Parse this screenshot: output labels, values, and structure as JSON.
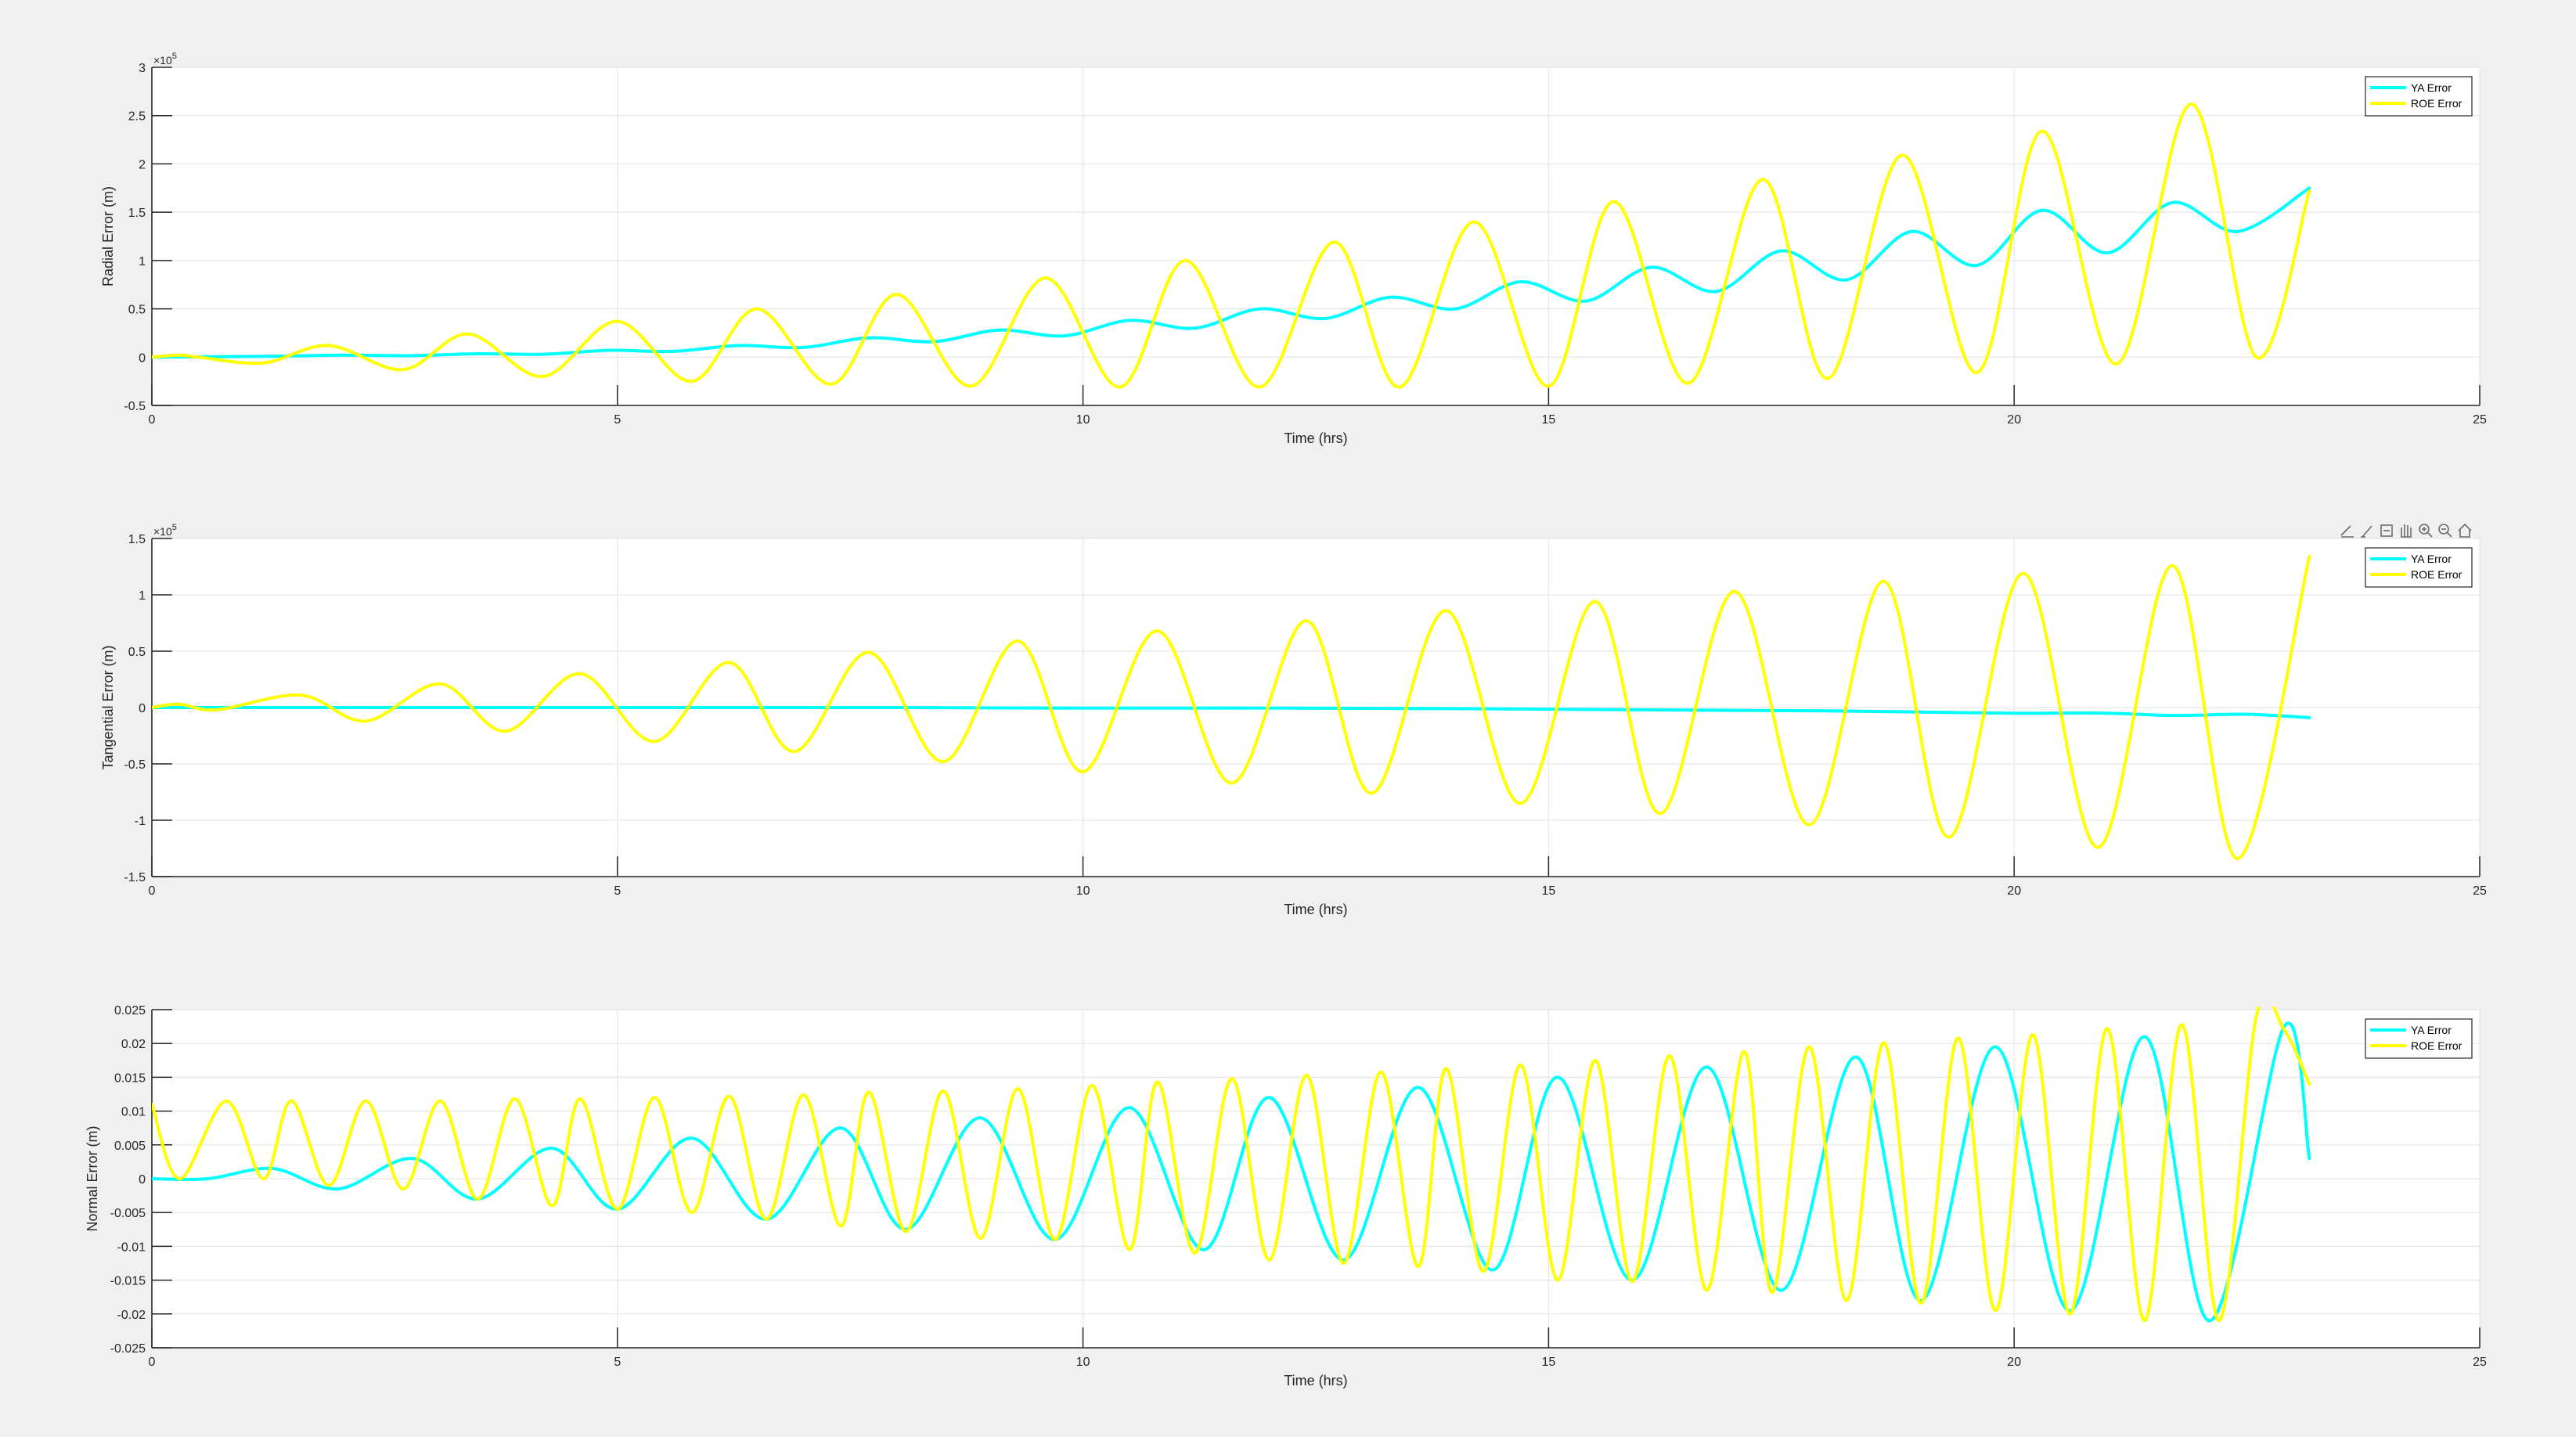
{
  "figure": {
    "background": "#f0f0f0"
  },
  "colors": {
    "ya": "#00ffff",
    "roe": "#ffff00",
    "axes_bg": "#ffffff",
    "grid": "#e6e6e6",
    "axis": "#262626"
  },
  "toolbar": {
    "icons": [
      "export-icon",
      "brush-icon",
      "datatip-icon",
      "pan-icon",
      "zoom-in-icon",
      "zoom-out-icon",
      "home-icon"
    ]
  },
  "chart_data": [
    {
      "type": "line",
      "xlabel": "Time (hrs)",
      "ylabel": "Radial Error (m)",
      "xlim": [
        0,
        25
      ],
      "ylim": [
        -0.5,
        3
      ],
      "exponent_prefix": "×10",
      "exponent_power": "5",
      "xticks": [
        "0",
        "5",
        "10",
        "15",
        "20",
        "25"
      ],
      "yticks": [
        "-0.5",
        "0",
        "0.5",
        "1",
        "1.5",
        "2",
        "2.5",
        "3"
      ],
      "ytick_values": [
        -0.5,
        0,
        0.5,
        1,
        1.5,
        2,
        2.5,
        3
      ],
      "grid": true,
      "legend_position": "top-right",
      "series": [
        {
          "name": "YA Error",
          "color": "#00ffff",
          "x": [
            0,
            1.35,
            2.05,
            2.8,
            3.5,
            4.2,
            4.9,
            5.6,
            6.3,
            7.0,
            7.7,
            8.4,
            9.1,
            9.8,
            10.5,
            11.2,
            11.9,
            12.6,
            13.3,
            14.0,
            14.7,
            15.4,
            16.1,
            16.8,
            17.5,
            18.2,
            18.9,
            19.6,
            20.3,
            21.0,
            21.7,
            22.4,
            23.17
          ],
          "y": [
            0,
            0.01,
            0.02,
            0.015,
            0.035,
            0.03,
            0.07,
            0.06,
            0.12,
            0.1,
            0.2,
            0.16,
            0.28,
            0.22,
            0.38,
            0.3,
            0.5,
            0.4,
            0.62,
            0.5,
            0.78,
            0.58,
            0.93,
            0.68,
            1.1,
            0.8,
            1.3,
            0.95,
            1.52,
            1.08,
            1.6,
            1.3,
            1.75
          ]
        },
        {
          "name": "ROE Error",
          "color": "#ffff00",
          "x": [
            0,
            0.3,
            0.5,
            1.2,
            1.9,
            2.7,
            3.4,
            4.2,
            5.0,
            5.8,
            6.5,
            7.3,
            8.0,
            8.8,
            9.6,
            10.4,
            11.1,
            11.9,
            12.7,
            13.4,
            14.2,
            15.0,
            15.7,
            16.5,
            17.3,
            18.0,
            18.8,
            19.6,
            20.3,
            21.1,
            21.9,
            22.6,
            23.17
          ],
          "y": [
            0,
            0.02,
            0,
            -0.06,
            0.12,
            -0.13,
            0.24,
            -0.2,
            0.37,
            -0.25,
            0.5,
            -0.28,
            0.65,
            -0.3,
            0.82,
            -0.31,
            1.0,
            -0.31,
            1.19,
            -0.31,
            1.4,
            -0.3,
            1.61,
            -0.27,
            1.84,
            -0.22,
            2.09,
            -0.16,
            2.34,
            -0.07,
            2.62,
            0.0,
            1.72
          ]
        }
      ]
    },
    {
      "type": "line",
      "xlabel": "Time (hrs)",
      "ylabel": "Tangential Error (m)",
      "xlim": [
        0,
        25
      ],
      "ylim": [
        -1.5,
        1.5
      ],
      "exponent_prefix": "×10",
      "exponent_power": "5",
      "xticks": [
        "0",
        "5",
        "10",
        "15",
        "20",
        "25"
      ],
      "yticks": [
        "-1.5",
        "-1",
        "-0.5",
        "0",
        "0.5",
        "1",
        "1.5"
      ],
      "ytick_values": [
        -1.5,
        -1,
        -0.5,
        0,
        0.5,
        1,
        1.5
      ],
      "grid": true,
      "legend_position": "top-right",
      "series": [
        {
          "name": "YA Error",
          "color": "#00ffff",
          "x": [
            0,
            2,
            4,
            6,
            8,
            10,
            12,
            14,
            16,
            18,
            19,
            20,
            21,
            21.7,
            22.5,
            23.17
          ],
          "y": [
            0,
            0,
            0,
            0,
            0,
            -0.005,
            -0.005,
            -0.01,
            -0.02,
            -0.03,
            -0.04,
            -0.05,
            -0.05,
            -0.07,
            -0.06,
            -0.09
          ]
        },
        {
          "name": "ROE Error",
          "color": "#ffff00",
          "x": [
            0,
            0.3,
            0.7,
            1.6,
            2.3,
            3.1,
            3.8,
            4.6,
            5.4,
            6.2,
            6.9,
            7.7,
            8.5,
            9.3,
            10.0,
            10.8,
            11.6,
            12.4,
            13.1,
            13.9,
            14.7,
            15.5,
            16.2,
            17.0,
            17.8,
            18.6,
            19.3,
            20.1,
            20.9,
            21.7,
            22.4,
            23.17
          ],
          "y": [
            0,
            0.03,
            -0.02,
            0.11,
            -0.12,
            0.21,
            -0.21,
            0.3,
            -0.3,
            0.4,
            -0.39,
            0.49,
            -0.48,
            0.59,
            -0.57,
            0.68,
            -0.67,
            0.77,
            -0.76,
            0.86,
            -0.85,
            0.94,
            -0.94,
            1.03,
            -1.04,
            1.12,
            -1.15,
            1.19,
            -1.24,
            1.26,
            -1.34,
            1.34
          ]
        }
      ]
    },
    {
      "type": "line",
      "xlabel": "Time (hrs)",
      "ylabel": "Normal Error (m)",
      "xlim": [
        0,
        25
      ],
      "ylim": [
        -0.025,
        0.025
      ],
      "exponent_prefix": "",
      "exponent_power": "",
      "xticks": [
        "0",
        "5",
        "10",
        "15",
        "20",
        "25"
      ],
      "yticks": [
        "-0.025",
        "-0.02",
        "-0.015",
        "-0.01",
        "-0.005",
        "0",
        "0.005",
        "0.01",
        "0.015",
        "0.02",
        "0.025"
      ],
      "ytick_values": [
        -0.025,
        -0.02,
        -0.015,
        -0.01,
        -0.005,
        0,
        0.005,
        0.01,
        0.015,
        0.02,
        0.025
      ],
      "grid": true,
      "legend_position": "top-right",
      "series": [
        {
          "name": "YA Error",
          "color": "#00ffff",
          "x": [
            0,
            0.6,
            1.3,
            2.0,
            2.8,
            3.5,
            4.3,
            5.0,
            5.8,
            6.6,
            7.4,
            8.1,
            8.9,
            9.7,
            10.5,
            11.3,
            12.0,
            12.8,
            13.6,
            14.4,
            15.1,
            15.9,
            16.7,
            17.5,
            18.3,
            19.0,
            19.8,
            20.6,
            21.4,
            22.1,
            22.9,
            23.17
          ],
          "y": [
            0,
            0,
            0.0015,
            -0.0015,
            0.003,
            -0.003,
            0.0045,
            -0.0045,
            0.006,
            -0.006,
            0.0075,
            -0.0075,
            0.009,
            -0.009,
            0.0105,
            -0.0105,
            0.012,
            -0.012,
            0.0135,
            -0.0135,
            0.015,
            -0.015,
            0.0165,
            -0.0165,
            0.018,
            -0.018,
            0.0195,
            -0.0195,
            0.021,
            -0.021,
            0.0225,
            0.003
          ]
        },
        {
          "name": "ROE Error",
          "color": "#ffff00",
          "x": [
            0,
            0.3,
            0.8,
            1.2,
            1.5,
            1.9,
            2.3,
            2.7,
            3.1,
            3.5,
            3.9,
            4.3,
            4.6,
            5.0,
            5.4,
            5.8,
            6.2,
            6.6,
            7.0,
            7.4,
            7.7,
            8.1,
            8.5,
            8.9,
            9.3,
            9.7,
            10.1,
            10.5,
            10.8,
            11.2,
            11.6,
            12.0,
            12.4,
            12.8,
            13.2,
            13.6,
            13.9,
            14.3,
            14.7,
            15.1,
            15.5,
            15.9,
            16.3,
            16.7,
            17.1,
            17.4,
            17.8,
            18.2,
            18.6,
            19.0,
            19.4,
            19.8,
            20.2,
            20.6,
            21.0,
            21.4,
            21.8,
            22.2,
            22.6,
            22.9,
            23.17
          ],
          "y": [
            0.011,
            0,
            0.0115,
            0,
            0.0115,
            -0.001,
            0.0115,
            -0.0015,
            0.0115,
            -0.003,
            0.0118,
            -0.004,
            0.0118,
            -0.0045,
            0.012,
            -0.005,
            0.0122,
            -0.006,
            0.0124,
            -0.007,
            0.0128,
            -0.0078,
            0.013,
            -0.0088,
            0.0133,
            -0.009,
            0.0138,
            -0.0105,
            0.0143,
            -0.011,
            0.0148,
            -0.012,
            0.0153,
            -0.0125,
            0.0158,
            -0.013,
            0.0163,
            -0.0137,
            0.0168,
            -0.015,
            0.0175,
            -0.0152,
            0.0182,
            -0.0165,
            0.0188,
            -0.0168,
            0.0195,
            -0.018,
            0.0201,
            -0.0184,
            0.0208,
            -0.0195,
            0.0213,
            -0.02,
            0.0222,
            -0.021,
            0.0228,
            -0.021,
            0.024,
            0.022,
            0.014
          ]
        }
      ]
    }
  ]
}
